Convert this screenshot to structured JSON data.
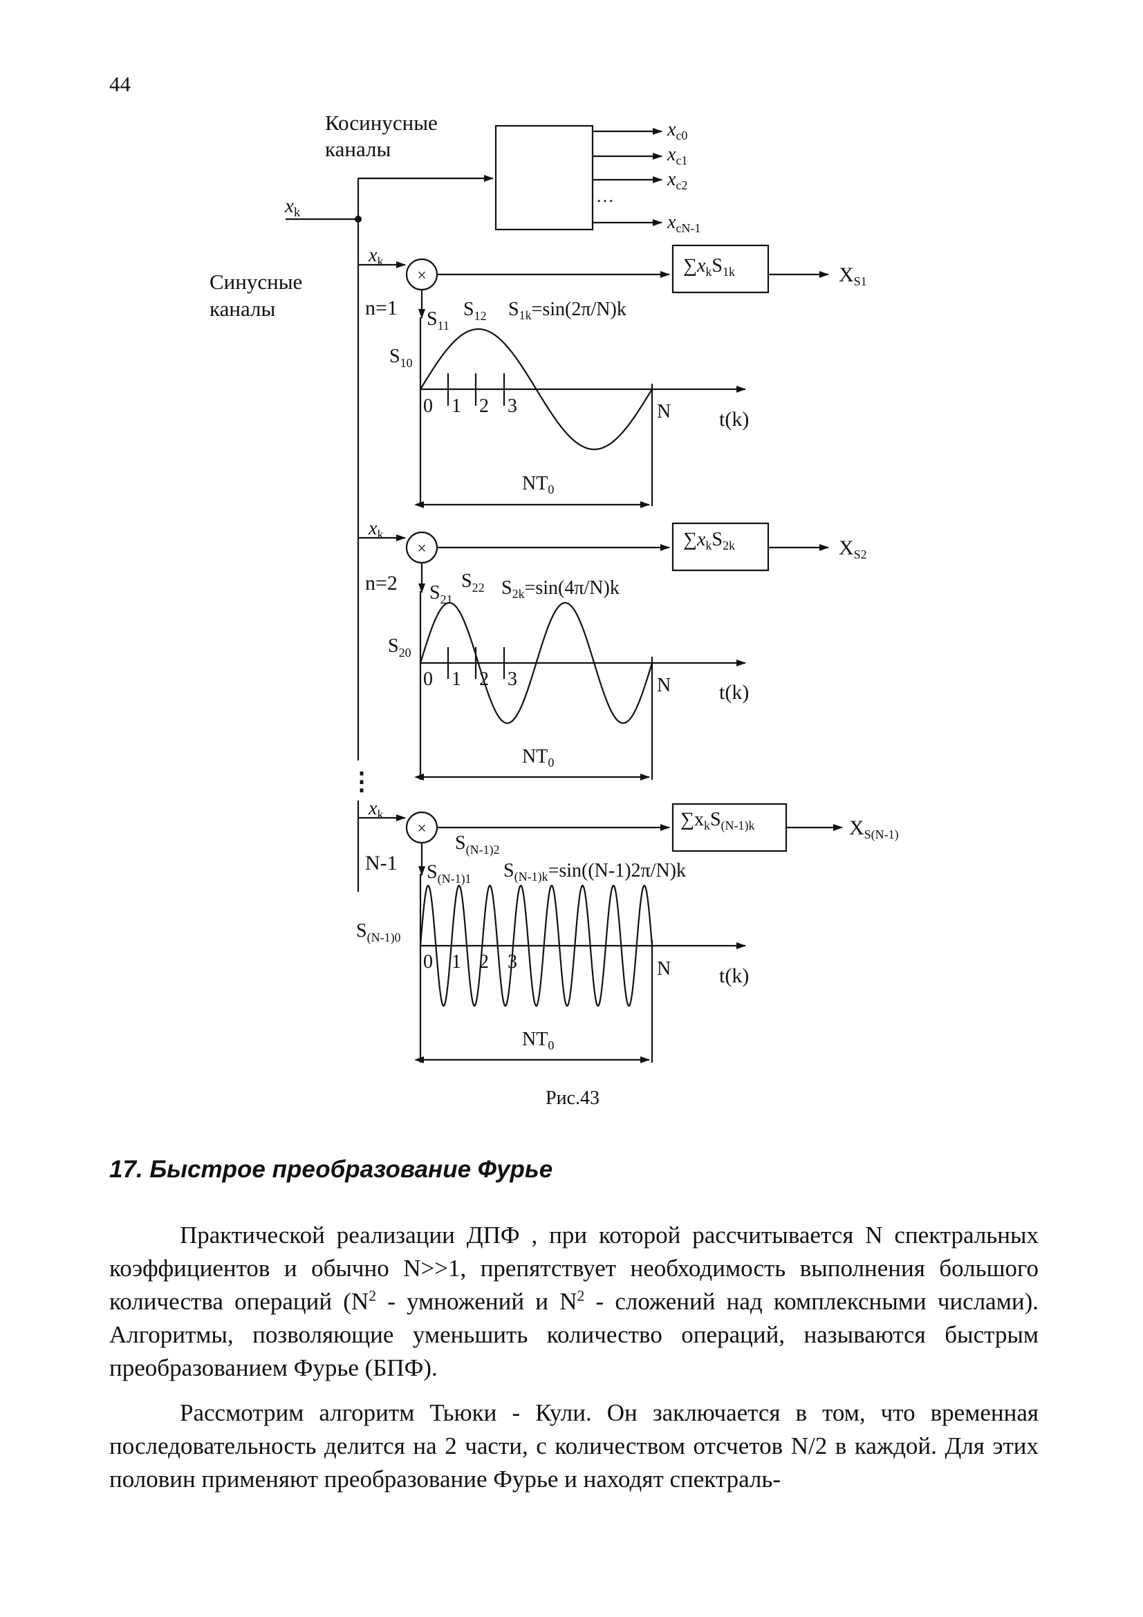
{
  "page_number": "44",
  "figure": {
    "cos_label_1": "Косинусные",
    "cos_label_2": "каналы",
    "sin_label_1": "Синусные",
    "sin_label_2": "каналы",
    "input": {
      "x": "x",
      "sub": "k"
    },
    "cos_outputs": [
      {
        "x": "x",
        "sub": "c0"
      },
      {
        "x": "x",
        "sub": "c1"
      },
      {
        "x": "x",
        "sub": "c2"
      },
      {
        "x": "x",
        "sub": "cN-1"
      }
    ],
    "cos_ellipsis": "…",
    "vertical_ellipsis": "⋮",
    "multiply_symbol": "×",
    "channels": [
      {
        "x": "x",
        "x_sub": "k",
        "n_label": "n=1",
        "sum": {
          "sigma": "∑",
          "x": "x",
          "x_sub": "k",
          "s": "S",
          "s_sub": "1k"
        },
        "out": {
          "main": "X",
          "sub": "S1"
        },
        "samples": [
          {
            "main": "S",
            "sub": "10"
          },
          {
            "main": "S",
            "sub": "11"
          },
          {
            "main": "S",
            "sub": "12"
          }
        ],
        "formula": {
          "main": "S",
          "sub": "1k",
          "rest": "=sin(2π/N)k"
        },
        "ticks": [
          "0",
          "1",
          "2",
          "3"
        ],
        "end_label": "N",
        "axis_label": "t(k)",
        "period": {
          "main": "NT",
          "sub": "0"
        }
      },
      {
        "x": "x",
        "x_sub": "k",
        "n_label": "n=2",
        "sum": {
          "sigma": "∑",
          "x": "x",
          "x_sub": "k",
          "s": "S",
          "s_sub": "2k"
        },
        "out": {
          "main": "X",
          "sub": "S2"
        },
        "samples": [
          {
            "main": "S",
            "sub": "20"
          },
          {
            "main": "S",
            "sub": "21"
          },
          {
            "main": "S",
            "sub": "22"
          }
        ],
        "formula": {
          "main": "S",
          "sub": "2k",
          "rest": "=sin(4π/N)k"
        },
        "ticks": [
          "0",
          "1",
          "2",
          "3"
        ],
        "end_label": "N",
        "axis_label": "t(k)",
        "period": {
          "main": "NT",
          "sub": "0"
        }
      },
      {
        "x": "x",
        "x_sub": "k",
        "n_label": "N-1",
        "sum": {
          "sigma": "∑",
          "x": "x",
          "x_sub": "k",
          "s": "S",
          "s_sub": "(N-1)k"
        },
        "out": {
          "main": "X",
          "sub": "S(N-1)"
        },
        "samples": [
          {
            "main": "S",
            "sub": "(N-1)0"
          },
          {
            "main": "S",
            "sub": "(N-1)1"
          },
          {
            "main": "S",
            "sub": "(N-1)2"
          }
        ],
        "formula": {
          "main": "S",
          "sub": "(N-1)k",
          "rest": "=sin((N-1)2π/N)k"
        },
        "ticks": [
          "0",
          "1",
          "2",
          "3"
        ],
        "end_label": "N",
        "axis_label": "t(k)",
        "period": {
          "main": "NT",
          "sub": "0"
        }
      }
    ],
    "caption": "Рис.43"
  },
  "section_heading": "17. Быстрое преобразование Фурье",
  "paragraph1": {
    "a": "Практической реализации ДПФ , при которой рассчитывается N спектральных коэффициентов и обычно N>>1, препятствует необходимость выполнения большого количества операций (N",
    "sup1": "2",
    "b": " - умножений и N",
    "sup2": "2",
    "c": " - сложений над комплексными числами). Алгоритмы, позволяющие уменьшить количество операций, называются быстрым преобразованием Фурье (БПФ)."
  },
  "paragraph2": "Рассмотрим алгоритм Тьюки - Кули. Он заключается в том, что временная последовательность делится на 2 части, с количеством отсчетов N/2 в каждой. Для этих половин применяют преобразование Фурье и находят спектраль-"
}
